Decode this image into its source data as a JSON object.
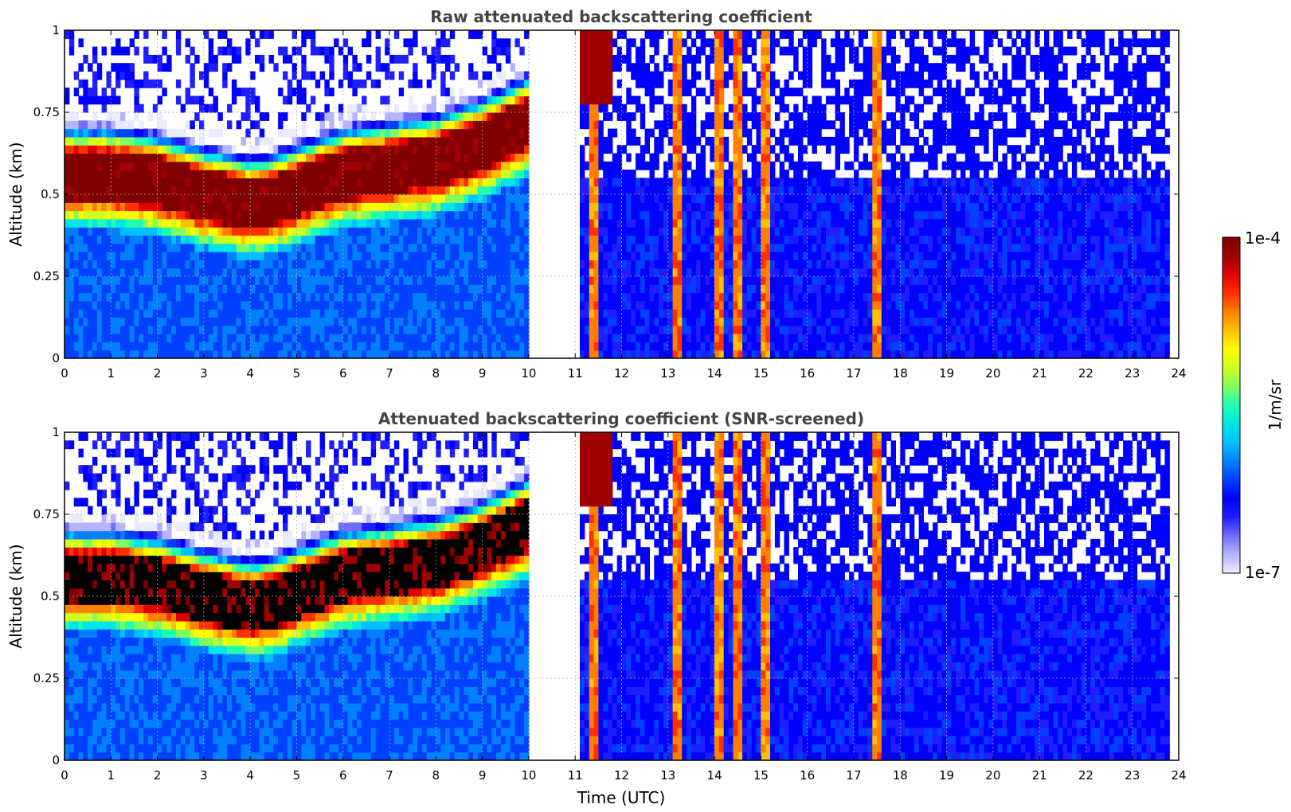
{
  "chart_data": [
    {
      "type": "heatmap",
      "title": "Raw attenuated backscattering coefficient",
      "xlabel": "",
      "ylabel": "Altitude (km)",
      "xlim": [
        0,
        24
      ],
      "ylim": [
        0,
        1
      ],
      "xticks": [
        "0",
        "1",
        "2",
        "3",
        "4",
        "5",
        "6",
        "7",
        "8",
        "9",
        "10",
        "11",
        "12",
        "13",
        "14",
        "15",
        "16",
        "17",
        "18",
        "19",
        "20",
        "21",
        "22",
        "23",
        "24"
      ],
      "yticks": [
        "0",
        "0.25",
        "0.5",
        "0.75",
        "1"
      ],
      "grid": true,
      "data_gap_hours": [
        10.05,
        11.05
      ],
      "end_hour": 23.8,
      "layer_center_km": [
        [
          0,
          0.56
        ],
        [
          1,
          0.56
        ],
        [
          2,
          0.54
        ],
        [
          3,
          0.5
        ],
        [
          4,
          0.47
        ],
        [
          4.5,
          0.48
        ],
        [
          5,
          0.51
        ],
        [
          6,
          0.56
        ],
        [
          7,
          0.58
        ],
        [
          8,
          0.6
        ],
        [
          9,
          0.65
        ],
        [
          10,
          0.72
        ]
      ],
      "layer_thickness_km": 0.15,
      "cloud_columns_hours": [
        11.4,
        13.2,
        14.1,
        14.5,
        15.1,
        17.5
      ],
      "screened": false
    },
    {
      "type": "heatmap",
      "title": "Attenuated backscattering coefficient (SNR-screened)",
      "xlabel": "Time (UTC)",
      "ylabel": "Altitude (km)",
      "xlim": [
        0,
        24
      ],
      "ylim": [
        0,
        1
      ],
      "xticks": [
        "0",
        "1",
        "2",
        "3",
        "4",
        "5",
        "6",
        "7",
        "8",
        "9",
        "10",
        "11",
        "12",
        "13",
        "14",
        "15",
        "16",
        "17",
        "18",
        "19",
        "20",
        "21",
        "22",
        "23",
        "24"
      ],
      "yticks": [
        "0",
        "0.25",
        "0.5",
        "0.75",
        "1"
      ],
      "grid": true,
      "data_gap_hours": [
        10.05,
        11.05
      ],
      "end_hour": 23.8,
      "layer_center_km": [
        [
          0,
          0.56
        ],
        [
          1,
          0.56
        ],
        [
          2,
          0.54
        ],
        [
          3,
          0.5
        ],
        [
          4,
          0.47
        ],
        [
          4.5,
          0.48
        ],
        [
          5,
          0.51
        ],
        [
          6,
          0.56
        ],
        [
          7,
          0.58
        ],
        [
          8,
          0.6
        ],
        [
          9,
          0.65
        ],
        [
          10,
          0.72
        ]
      ],
      "layer_thickness_km": 0.15,
      "cloud_columns_hours": [
        11.4,
        13.2,
        14.1,
        14.5,
        15.1,
        17.5
      ],
      "screened": true
    }
  ],
  "colorbar": {
    "label": "1/m/sr",
    "max_label": "1e-4",
    "min_label": "1e-7",
    "scale": "log",
    "range": [
      1e-07,
      0.0001
    ],
    "colors": [
      "#ebebff",
      "#b4b4ff",
      "#6e6eff",
      "#1e1eff",
      "#0000ff",
      "#0040ff",
      "#0080ff",
      "#00c0ff",
      "#00e5e5",
      "#20ffb0",
      "#80ff60",
      "#d0ff20",
      "#ffff00",
      "#ffc000",
      "#ff8000",
      "#ff3000",
      "#e00000",
      "#a00000",
      "#800000"
    ]
  }
}
